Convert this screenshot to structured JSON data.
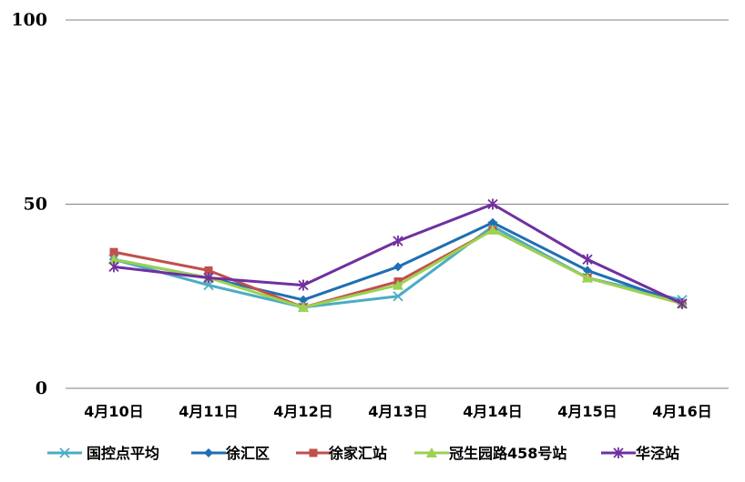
{
  "chart_data": {
    "type": "line",
    "title": "",
    "xlabel": "",
    "ylabel": "",
    "ylim": [
      0,
      100
    ],
    "yticks": [
      0,
      50,
      100
    ],
    "grid": true,
    "legend_position": "bottom",
    "categories": [
      "4月10日",
      "4月11日",
      "4月12日",
      "4月13日",
      "4月14日",
      "4月15日",
      "4月16日"
    ],
    "series": [
      {
        "name": "国控点平均",
        "color": "#4bacc6",
        "marker": "x",
        "values": [
          35,
          28,
          22,
          25,
          44,
          30,
          24
        ]
      },
      {
        "name": "徐汇区",
        "color": "#1f6fb2",
        "marker": "diamond",
        "values": [
          35,
          30,
          24,
          33,
          45,
          32,
          23
        ]
      },
      {
        "name": "徐家汇站",
        "color": "#c0504d",
        "marker": "square",
        "values": [
          37,
          32,
          22,
          29,
          43,
          30,
          23
        ]
      },
      {
        "name": "冠生园路458号站",
        "color": "#9bd250",
        "marker": "triangle",
        "values": [
          35,
          30,
          22,
          28,
          43,
          30,
          23
        ]
      },
      {
        "name": "华泾站",
        "color": "#7030a0",
        "marker": "star",
        "values": [
          33,
          30,
          28,
          40,
          50,
          35,
          23
        ]
      }
    ]
  }
}
